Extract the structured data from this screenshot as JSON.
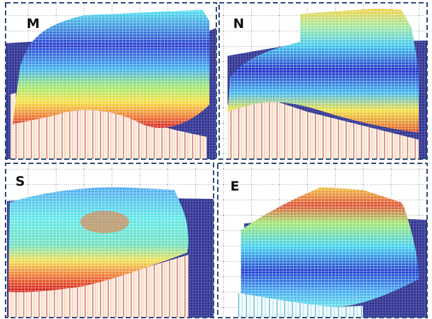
{
  "panels": [
    {
      "label": "M"
    },
    {
      "label": "N"
    },
    {
      "label": "S"
    },
    {
      "label": "E"
    }
  ]
}
